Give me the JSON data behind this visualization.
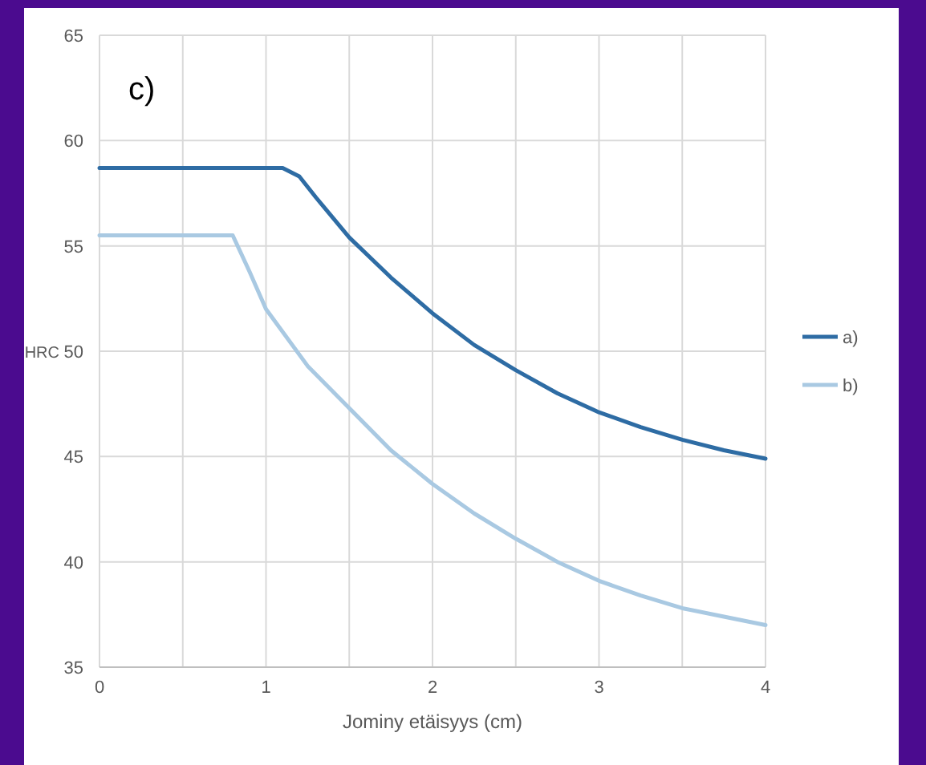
{
  "chart_data": {
    "type": "line",
    "ylabel": "HRC",
    "xlabel": "Jominy etäisyys (cm)",
    "annotations": [
      "c)"
    ],
    "xlim": [
      0,
      4
    ],
    "xticks": [
      0,
      1,
      2,
      3,
      4
    ],
    "ylim": [
      35,
      65
    ],
    "yticks": [
      35,
      40,
      45,
      50,
      55,
      60,
      65
    ],
    "grid": true,
    "legend": "right",
    "line_style": "solid",
    "series": [
      {
        "name": "a)",
        "color": "#2e6ca4",
        "x": [
          0,
          0.5,
          1,
          1.1,
          1.2,
          1.3,
          1.5,
          1.75,
          2,
          2.25,
          2.5,
          2.75,
          3,
          3.25,
          3.5,
          3.75,
          4
        ],
        "values": [
          58.7,
          58.7,
          58.7,
          58.7,
          58.3,
          57.3,
          55.4,
          53.5,
          51.8,
          50.3,
          49.1,
          48,
          47.1,
          46.4,
          45.8,
          45.3,
          44.9
        ]
      },
      {
        "name": "b)",
        "color": "#a9c9e2",
        "x": [
          0,
          0.5,
          0.8,
          0.9,
          1,
          1.25,
          1.5,
          1.75,
          2,
          2.25,
          2.5,
          2.75,
          3,
          3.25,
          3.5,
          3.75,
          4
        ],
        "values": [
          55.5,
          55.5,
          55.5,
          53.8,
          52,
          49.3,
          47.3,
          45.3,
          43.7,
          42.3,
          41.1,
          40,
          39.1,
          38.4,
          37.8,
          37.4,
          37
        ]
      }
    ]
  }
}
